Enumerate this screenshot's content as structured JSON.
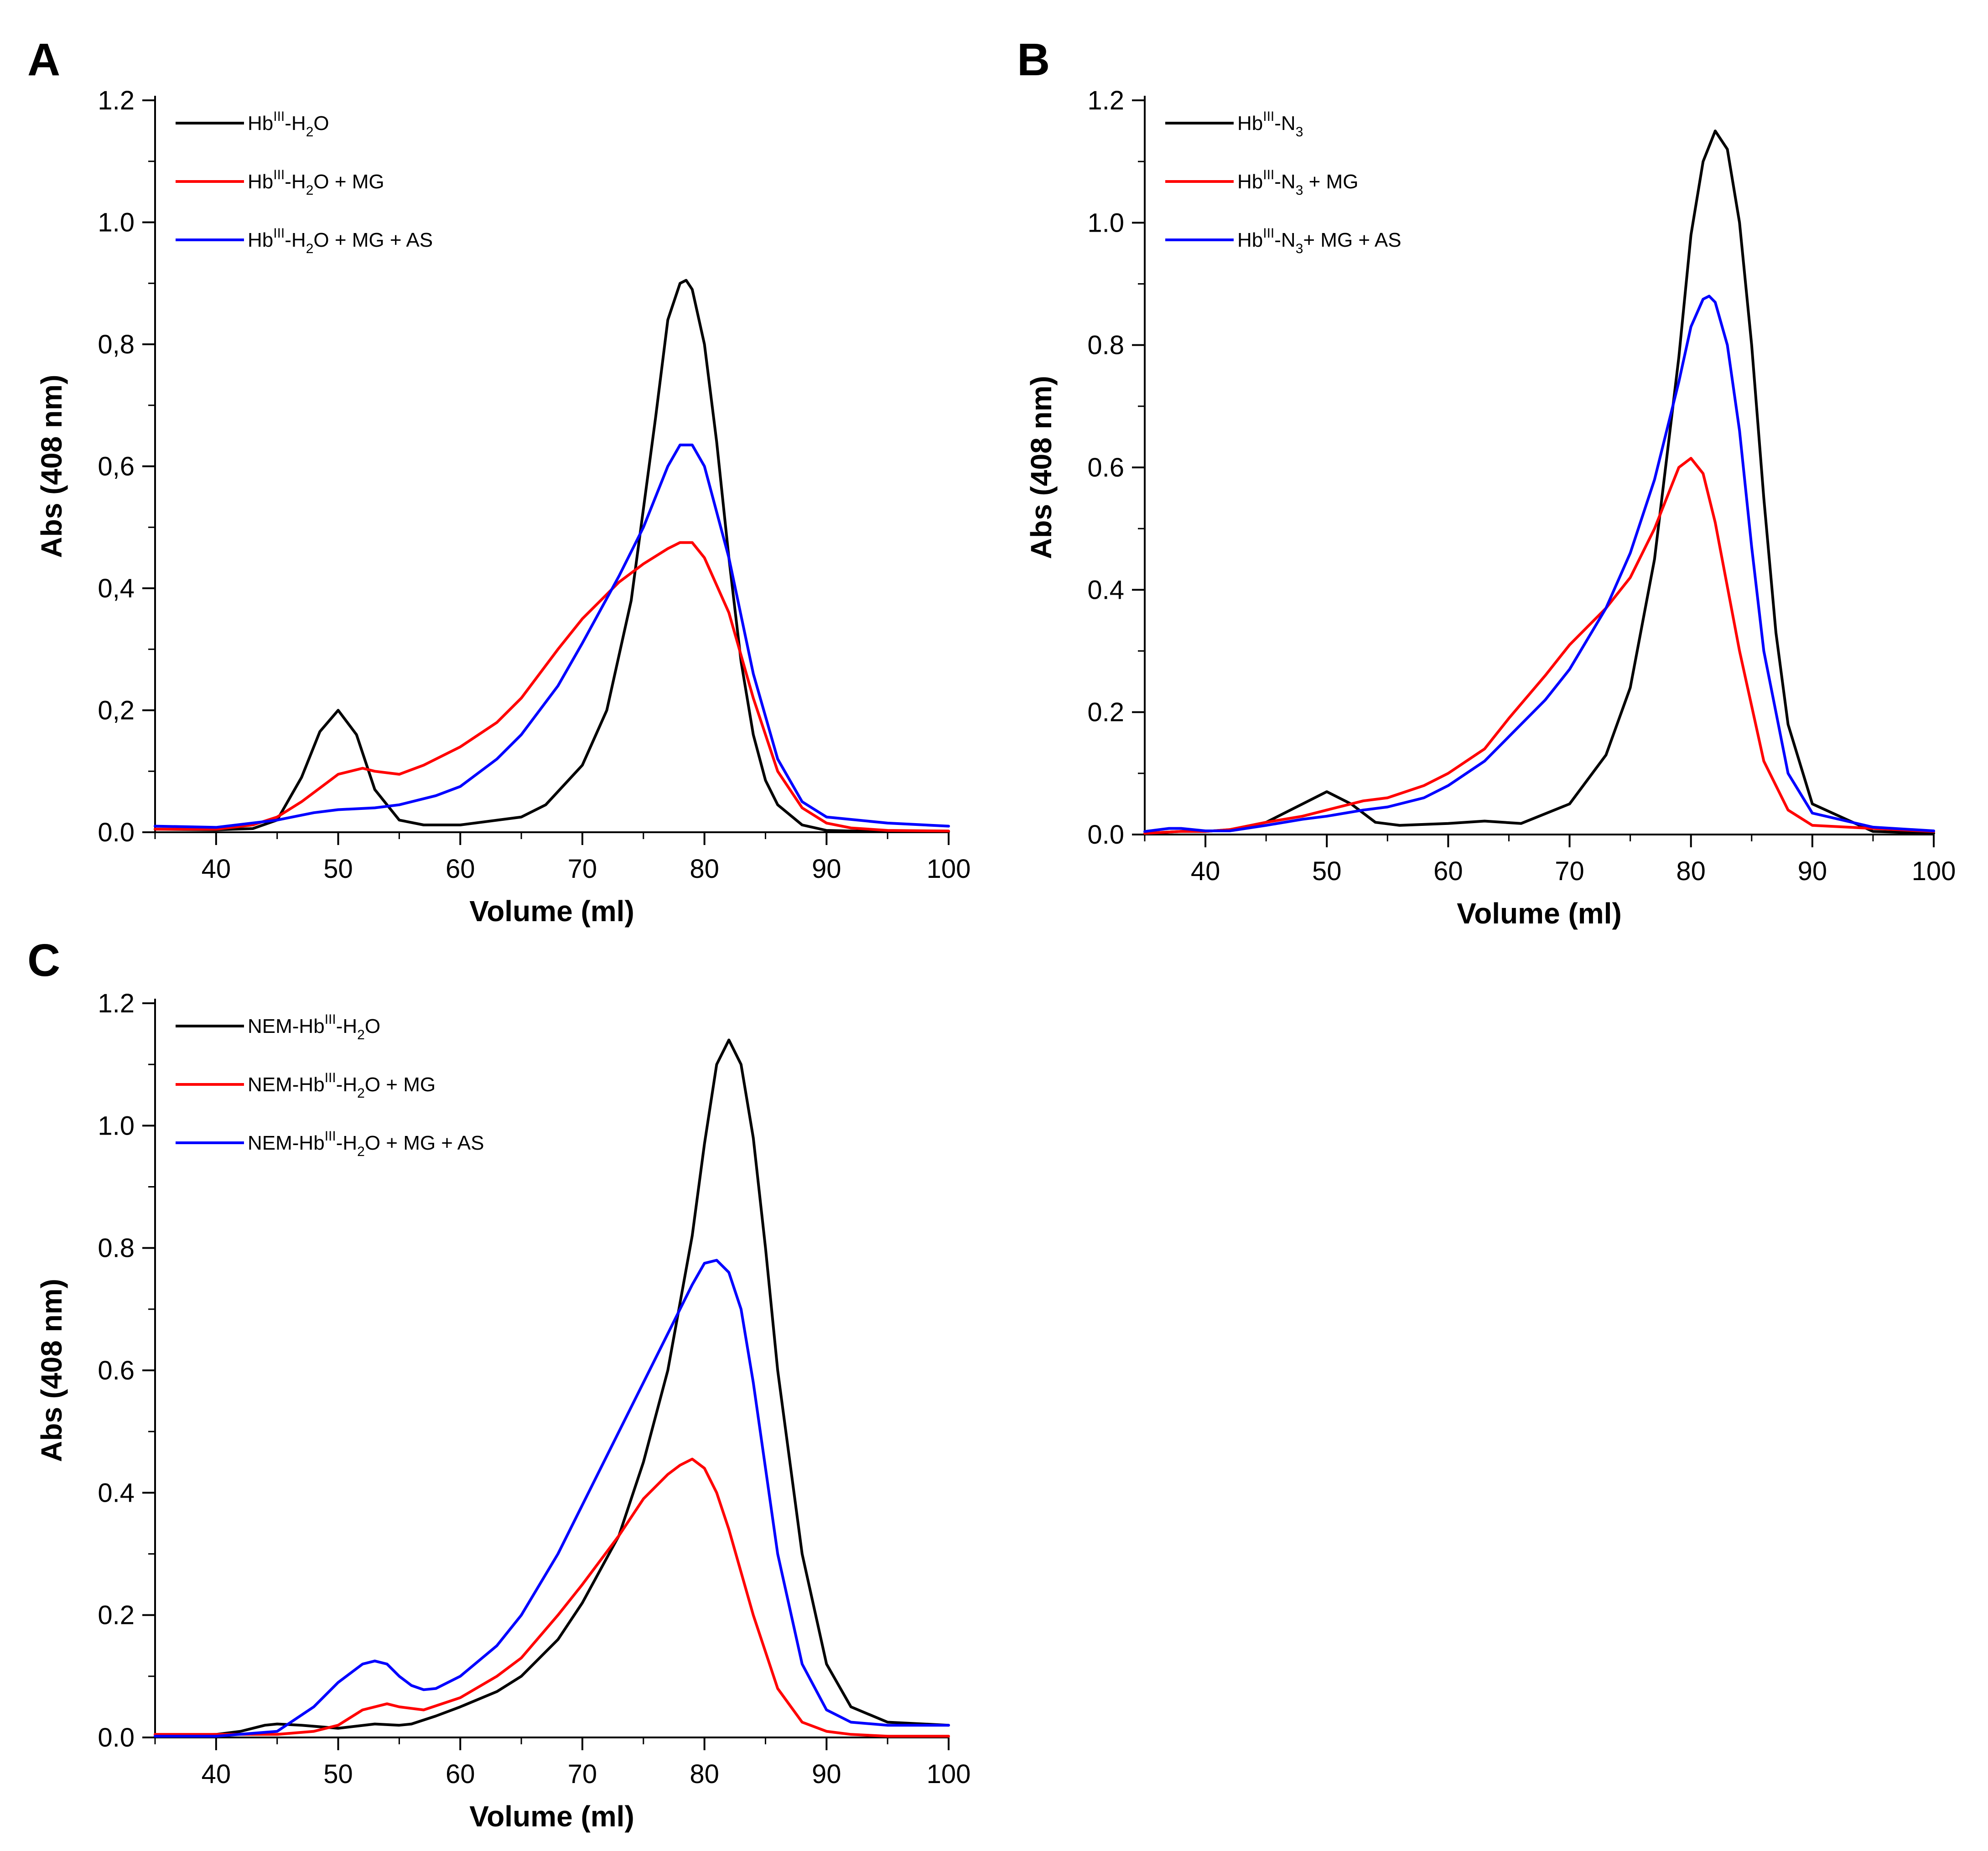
{
  "chart_data": [
    {
      "type": "line",
      "panel": "A",
      "xlabel": "Volume (ml)",
      "ylabel": "Abs (408 nm)",
      "xlim": [
        35,
        100
      ],
      "ylim": [
        0,
        1.2
      ],
      "xticks": [
        "40",
        "50",
        "60",
        "70",
        "80",
        "90",
        "100"
      ],
      "yticks": [
        "0.0",
        "0,2",
        "0,4",
        "0,6",
        "0,8",
        "1.0",
        "1.2"
      ],
      "legend_position": "top-left",
      "series": [
        {
          "name": "Hb-H2O",
          "legend": {
            "base": "Hb",
            "sup": "III",
            "mid": "-H",
            "sub": "2",
            "rest": "O"
          },
          "color": "#000000",
          "x": [
            35,
            40,
            43,
            45,
            47,
            48.5,
            50,
            51.5,
            53,
            55,
            57,
            60,
            65,
            67,
            70,
            72,
            74,
            76,
            77,
            78,
            78.5,
            79,
            80,
            81,
            82,
            83,
            84,
            85,
            86,
            88,
            90,
            92,
            95,
            100
          ],
          "y": [
            0.005,
            0.004,
            0.006,
            0.02,
            0.09,
            0.165,
            0.2,
            0.16,
            0.07,
            0.02,
            0.012,
            0.012,
            0.025,
            0.045,
            0.11,
            0.2,
            0.38,
            0.68,
            0.84,
            0.9,
            0.905,
            0.89,
            0.8,
            0.64,
            0.45,
            0.28,
            0.16,
            0.085,
            0.045,
            0.012,
            0.003,
            0.002,
            0.001,
            0.001
          ]
        },
        {
          "name": "Hb-H2O + MG",
          "legend": {
            "base": "Hb",
            "sup": "III",
            "mid": "-H",
            "sub": "2",
            "rest": "O + MG"
          },
          "color": "#ff0000",
          "x": [
            35,
            40,
            43,
            45,
            47,
            49,
            50,
            52,
            53,
            55,
            57,
            60,
            63,
            65,
            68,
            70,
            73,
            75,
            77,
            78,
            79,
            80,
            82,
            84,
            86,
            88,
            90,
            92,
            95,
            100
          ],
          "y": [
            0.005,
            0.005,
            0.012,
            0.025,
            0.05,
            0.08,
            0.095,
            0.105,
            0.1,
            0.095,
            0.11,
            0.14,
            0.18,
            0.22,
            0.3,
            0.35,
            0.41,
            0.44,
            0.465,
            0.475,
            0.475,
            0.45,
            0.36,
            0.22,
            0.1,
            0.04,
            0.015,
            0.007,
            0.003,
            0.002
          ]
        },
        {
          "name": "Hb-H2O + MG + AS",
          "legend": {
            "base": "Hb",
            "sup": "III",
            "mid": "-H",
            "sub": "2",
            "rest": "O + MG + AS"
          },
          "color": "#0000ff",
          "x": [
            35,
            40,
            45,
            48,
            50,
            53,
            55,
            58,
            60,
            63,
            65,
            68,
            70,
            73,
            75,
            77,
            78,
            79,
            80,
            82,
            84,
            86,
            88,
            90,
            95,
            100
          ],
          "y": [
            0.01,
            0.008,
            0.02,
            0.032,
            0.037,
            0.04,
            0.045,
            0.06,
            0.075,
            0.12,
            0.16,
            0.24,
            0.31,
            0.42,
            0.5,
            0.6,
            0.635,
            0.635,
            0.6,
            0.45,
            0.26,
            0.12,
            0.05,
            0.025,
            0.015,
            0.01
          ]
        }
      ]
    },
    {
      "type": "line",
      "panel": "B",
      "xlabel": "Volume (ml)",
      "ylabel": "Abs (408 nm)",
      "xlim": [
        35,
        100
      ],
      "ylim": [
        0,
        1.2
      ],
      "xticks": [
        "40",
        "50",
        "60",
        "70",
        "80",
        "90",
        "100"
      ],
      "yticks": [
        "0.0",
        "0.2",
        "0.4",
        "0.6",
        "0.8",
        "1.0",
        "1.2"
      ],
      "legend_position": "top-left",
      "series": [
        {
          "name": "Hb-N3",
          "legend": {
            "base": "Hb",
            "sup": "III",
            "mid": "-N",
            "sub": "3",
            "rest": ""
          },
          "color": "#000000",
          "x": [
            35,
            38,
            40,
            42,
            45,
            48,
            50,
            52,
            54,
            56,
            60,
            63,
            66,
            70,
            73,
            75,
            77,
            79,
            80,
            81,
            82,
            83,
            84,
            85,
            86,
            87,
            88,
            90,
            95,
            100
          ],
          "y": [
            0.002,
            0.005,
            0.005,
            0.008,
            0.02,
            0.05,
            0.07,
            0.05,
            0.02,
            0.015,
            0.018,
            0.022,
            0.018,
            0.05,
            0.13,
            0.24,
            0.45,
            0.78,
            0.98,
            1.1,
            1.15,
            1.12,
            1.0,
            0.8,
            0.55,
            0.33,
            0.18,
            0.05,
            0.005,
            0.002
          ]
        },
        {
          "name": "Hb-N3 + MG",
          "legend": {
            "base": "Hb",
            "sup": "III",
            "mid": "-N",
            "sub": "3",
            "rest": " + MG"
          },
          "color": "#ff0000",
          "x": [
            35,
            38,
            40,
            42,
            45,
            48,
            50,
            53,
            55,
            58,
            60,
            63,
            65,
            68,
            70,
            73,
            75,
            77,
            79,
            80,
            81,
            82,
            84,
            86,
            88,
            90,
            95,
            100
          ],
          "y": [
            0.002,
            0.005,
            0.005,
            0.008,
            0.02,
            0.03,
            0.04,
            0.055,
            0.06,
            0.08,
            0.1,
            0.14,
            0.19,
            0.26,
            0.31,
            0.37,
            0.42,
            0.5,
            0.6,
            0.615,
            0.59,
            0.51,
            0.3,
            0.12,
            0.04,
            0.015,
            0.01,
            0.005
          ]
        },
        {
          "name": "Hb-N3+ MG + AS",
          "legend": {
            "base": "Hb",
            "sup": "III",
            "mid": "-N",
            "sub": "3",
            "rest": "+ MG + AS"
          },
          "color": "#0000ff",
          "x": [
            35,
            37,
            38,
            40,
            42,
            45,
            48,
            50,
            53,
            55,
            58,
            60,
            63,
            65,
            68,
            70,
            73,
            75,
            77,
            79,
            80,
            81,
            81.5,
            82,
            83,
            84,
            85,
            86,
            88,
            90,
            95,
            100
          ],
          "y": [
            0.005,
            0.01,
            0.01,
            0.006,
            0.006,
            0.015,
            0.025,
            0.03,
            0.04,
            0.045,
            0.06,
            0.08,
            0.12,
            0.16,
            0.22,
            0.27,
            0.37,
            0.46,
            0.58,
            0.74,
            0.83,
            0.875,
            0.88,
            0.87,
            0.8,
            0.66,
            0.47,
            0.3,
            0.1,
            0.035,
            0.012,
            0.006
          ]
        }
      ]
    },
    {
      "type": "line",
      "panel": "C",
      "xlabel": "Volume (ml)",
      "ylabel": "Abs (408 nm)",
      "xlim": [
        35,
        100
      ],
      "ylim": [
        0,
        1.2
      ],
      "xticks": [
        "40",
        "50",
        "60",
        "70",
        "80",
        "90",
        "100"
      ],
      "yticks": [
        "0.0",
        "0.2",
        "0.4",
        "0.6",
        "0.8",
        "1.0",
        "1.2"
      ],
      "legend_position": "top-left",
      "series": [
        {
          "name": "NEM-Hb-H2O",
          "legend": {
            "base": "NEM-Hb",
            "sup": "III",
            "mid": "-H",
            "sub": "2",
            "rest": "O"
          },
          "color": "#000000",
          "x": [
            35,
            40,
            42,
            44,
            45,
            47,
            50,
            53,
            55,
            56,
            58,
            60,
            63,
            65,
            68,
            70,
            73,
            75,
            77,
            79,
            80,
            81,
            82,
            83,
            84,
            85,
            86,
            88,
            90,
            92,
            95,
            100
          ],
          "y": [
            0.002,
            0.005,
            0.01,
            0.02,
            0.022,
            0.02,
            0.015,
            0.022,
            0.02,
            0.022,
            0.035,
            0.05,
            0.075,
            0.1,
            0.16,
            0.22,
            0.33,
            0.45,
            0.6,
            0.82,
            0.97,
            1.1,
            1.14,
            1.1,
            0.98,
            0.8,
            0.6,
            0.3,
            0.12,
            0.05,
            0.025,
            0.02
          ]
        },
        {
          "name": "NEM-Hb-H2O + MG",
          "legend": {
            "base": "NEM-Hb",
            "sup": "III",
            "mid": "-H",
            "sub": "2",
            "rest": "O + MG"
          },
          "color": "#ff0000",
          "x": [
            35,
            40,
            45,
            48,
            50,
            52,
            54,
            55,
            57,
            60,
            63,
            65,
            68,
            70,
            73,
            75,
            77,
            78,
            79,
            80,
            81,
            82,
            84,
            86,
            88,
            90,
            92,
            95,
            100
          ],
          "y": [
            0.005,
            0.005,
            0.005,
            0.01,
            0.02,
            0.045,
            0.055,
            0.05,
            0.045,
            0.065,
            0.1,
            0.13,
            0.2,
            0.25,
            0.33,
            0.39,
            0.43,
            0.445,
            0.455,
            0.44,
            0.4,
            0.34,
            0.2,
            0.08,
            0.025,
            0.01,
            0.005,
            0.002,
            0.002
          ]
        },
        {
          "name": "NEM-Hb-H2O + MG + AS",
          "legend": {
            "base": "NEM-Hb",
            "sup": "III",
            "mid": "-H",
            "sub": "2",
            "rest": "O + MG + AS"
          },
          "color": "#0000ff",
          "x": [
            35,
            40,
            45,
            48,
            50,
            52,
            53,
            54,
            55,
            56,
            57,
            58,
            60,
            63,
            65,
            68,
            70,
            73,
            75,
            77,
            79,
            80,
            81,
            82,
            83,
            84,
            85,
            86,
            88,
            90,
            92,
            95,
            100
          ],
          "y": [
            0.002,
            0.002,
            0.01,
            0.05,
            0.09,
            0.12,
            0.125,
            0.12,
            0.1,
            0.085,
            0.078,
            0.08,
            0.1,
            0.15,
            0.2,
            0.3,
            0.38,
            0.5,
            0.58,
            0.66,
            0.74,
            0.775,
            0.78,
            0.76,
            0.7,
            0.58,
            0.44,
            0.3,
            0.12,
            0.045,
            0.025,
            0.02,
            0.02
          ]
        }
      ]
    }
  ]
}
